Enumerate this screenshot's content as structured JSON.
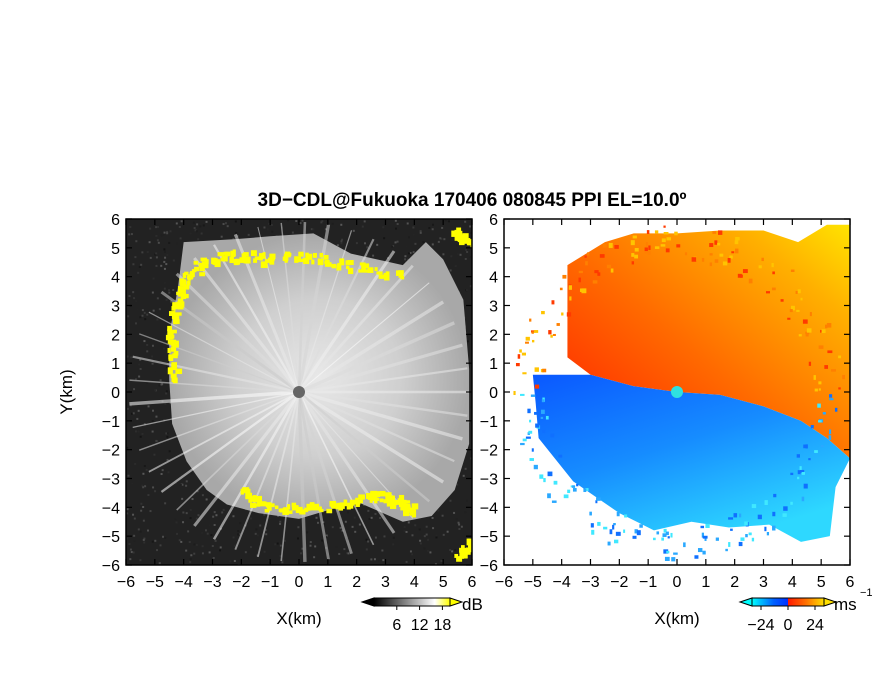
{
  "chart_data": [
    {
      "type": "heatmap",
      "quantity": "backscatter intensity",
      "title": "3D−CDL@Fukuoka 170406 080845 PPI EL=10.0º",
      "xlabel": "X(km)",
      "ylabel": "Y(km)",
      "xlim": [
        -6,
        6
      ],
      "ylim": [
        -6,
        6
      ],
      "xticks": [
        -6,
        -5,
        -4,
        -3,
        -2,
        -1,
        0,
        1,
        2,
        3,
        4,
        5,
        6
      ],
      "yticks": [
        -6,
        -5,
        -4,
        -3,
        -2,
        -1,
        0,
        1,
        2,
        3,
        4,
        5,
        6
      ],
      "colormap": "grayscale with yellow saturation",
      "colorbar": {
        "unit": "dB",
        "ticks": [
          6,
          12,
          18
        ],
        "tick_labels": [
          "6",
          "12",
          "18"
        ],
        "range": [
          0,
          20
        ],
        "colors": [
          "#000000",
          "#ffffff",
          "#ffff00"
        ]
      }
    },
    {
      "type": "heatmap",
      "quantity": "Doppler radial velocity",
      "xlabel": "X(km)",
      "ylabel": "",
      "xlim": [
        -6,
        6
      ],
      "ylim": [
        -6,
        6
      ],
      "xticks": [
        -6,
        -5,
        -4,
        -3,
        -2,
        -1,
        0,
        1,
        2,
        3,
        4,
        5,
        6
      ],
      "yticks": [
        -6,
        -5,
        -4,
        -3,
        -2,
        -1,
        0,
        1,
        2,
        3,
        4,
        5,
        6
      ],
      "colormap": "cyan-blue-red-yellow diverging",
      "colorbar": {
        "unit": "ms",
        "unit_exponent": "−1",
        "ticks": [
          -24,
          0,
          24
        ],
        "tick_labels": [
          "−24",
          "0",
          "24"
        ],
        "range": [
          -32,
          32
        ],
        "colors": [
          "#00ffff",
          "#0050ff",
          "#ff1800",
          "#ffe000"
        ]
      }
    }
  ]
}
